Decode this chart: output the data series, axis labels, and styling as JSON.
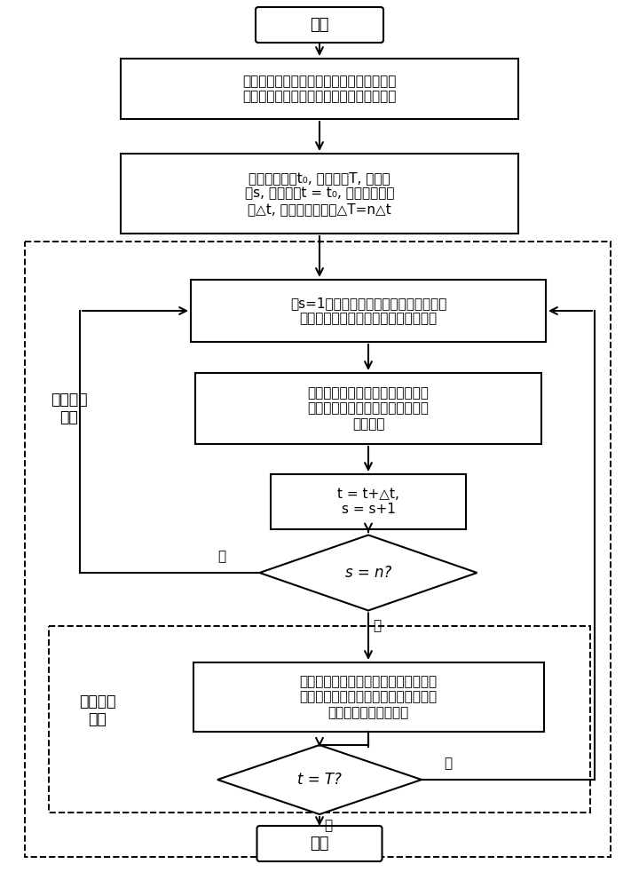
{
  "bg_color": "#ffffff",
  "start_text": "开始",
  "end_text": "结束",
  "box1_text": "输入线路参数、网络拓扑结构，负荷与分布\n式电源接入位置、类型和容量等参数及初值",
  "box2_text": "设置起始时刻t₀, 优化时间T, 时移步\n数s, 当前时刻t = t₀, 控制域时间间\n隔△t, 预测域时间间隔△T=n△t",
  "box3_text": "令s=1，更新预测域信息，根据分布式电\n源出力对电压灵敏度分析进行网络分区",
  "box4_text": "更新控制域信息，在控制域内基于\n区间协调整定分布式电源就地控制\n曲线参数",
  "box5_text": "t = t+△t,\ns = s+1",
  "d1_text": "s = n?",
  "box6_text": "下发就地曲线至相应分布式电源，分布\n式电源采集本地电压测量值，根据就地\n控制曲线调节无功出力",
  "d2_text": "t = T?",
  "label_rolling": "滚动优化\n阶段",
  "label_realtime": "实时运行\n阶段",
  "yes_text": "是",
  "no_text": "否"
}
